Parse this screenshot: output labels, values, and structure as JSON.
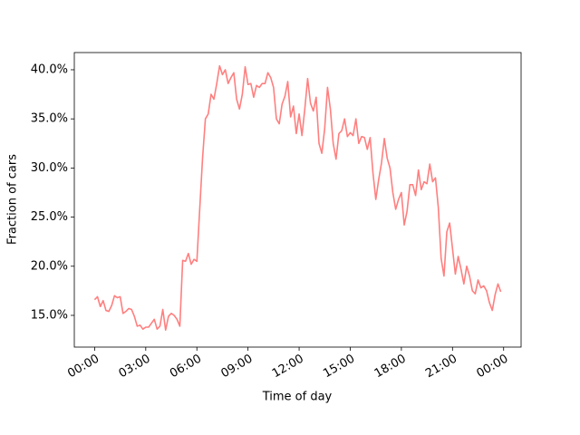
{
  "chart_data": {
    "type": "line",
    "xlabel": "Time of day",
    "ylabel": "Fraction of cars",
    "color": "#ff7f7f",
    "x": [
      0,
      10,
      20,
      30,
      40,
      50,
      60,
      70,
      80,
      90,
      100,
      110,
      120,
      130,
      140,
      150,
      160,
      170,
      180,
      190,
      200,
      210,
      220,
      230,
      240,
      250,
      260,
      270,
      280,
      290,
      300,
      310,
      320,
      330,
      340,
      350,
      360,
      370,
      380,
      390,
      400,
      410,
      420,
      430,
      440,
      450,
      460,
      470,
      480,
      490,
      500,
      510,
      520,
      530,
      540,
      550,
      560,
      570,
      580,
      590,
      600,
      610,
      620,
      630,
      640,
      650,
      660,
      670,
      680,
      690,
      700,
      710,
      720,
      730,
      740,
      750,
      760,
      770,
      780,
      790,
      800,
      810,
      820,
      830,
      840,
      850,
      860,
      870,
      880,
      890,
      900,
      910,
      920,
      930,
      940,
      950,
      960,
      970,
      980,
      990,
      1000,
      1010,
      1020,
      1030,
      1040,
      1050,
      1060,
      1070,
      1080,
      1090,
      1100,
      1110,
      1120,
      1130,
      1140,
      1150,
      1160,
      1170,
      1180,
      1190,
      1200,
      1210,
      1220,
      1230,
      1240,
      1250,
      1260,
      1270,
      1280,
      1290,
      1300,
      1310,
      1320,
      1330,
      1340,
      1350,
      1360,
      1370,
      1380,
      1390,
      1400,
      1410,
      1420,
      1430
    ],
    "values": [
      16.6,
      16.9,
      15.9,
      16.5,
      15.5,
      15.4,
      16.0,
      17.0,
      16.8,
      16.9,
      15.2,
      15.4,
      15.7,
      15.6,
      14.9,
      13.9,
      14.0,
      13.6,
      13.8,
      13.8,
      14.2,
      14.6,
      13.6,
      13.9,
      15.6,
      13.5,
      14.9,
      15.2,
      15.0,
      14.6,
      13.9,
      20.6,
      20.5,
      21.3,
      20.2,
      20.7,
      20.5,
      25.8,
      31.0,
      35.0,
      35.5,
      37.5,
      37.0,
      38.6,
      40.4,
      39.5,
      40.0,
      38.6,
      39.2,
      39.7,
      37.0,
      36.0,
      37.5,
      40.3,
      38.5,
      38.6,
      37.2,
      38.4,
      38.2,
      38.6,
      38.6,
      39.7,
      39.2,
      38.2,
      35.0,
      34.5,
      36.5,
      37.3,
      38.8,
      35.2,
      36.3,
      33.5,
      35.5,
      33.3,
      36.0,
      39.1,
      36.6,
      35.8,
      37.2,
      32.5,
      31.5,
      34.0,
      38.2,
      36.0,
      32.5,
      30.9,
      33.5,
      33.8,
      35.0,
      33.2,
      33.6,
      33.3,
      35.0,
      32.5,
      33.2,
      33.1,
      31.9,
      33.1,
      29.5,
      26.8,
      28.8,
      30.5,
      33.0,
      31.0,
      30.0,
      27.5,
      25.8,
      26.8,
      27.5,
      24.2,
      25.6,
      28.3,
      28.3,
      27.2,
      29.8,
      27.8,
      28.6,
      28.4,
      30.4,
      28.6,
      29.0,
      26.0,
      20.8,
      19.0,
      23.5,
      24.4,
      21.8,
      19.2,
      21.0,
      19.7,
      18.2,
      20.0,
      19.0,
      17.5,
      17.2,
      18.6,
      17.8,
      18.0,
      17.5,
      16.3,
      15.5,
      17.1,
      18.2,
      17.4
    ],
    "xlim": [
      -71.5,
      1501.5
    ],
    "xticks": [
      {
        "value": 0,
        "label": "00:00"
      },
      {
        "value": 180,
        "label": "03:00"
      },
      {
        "value": 360,
        "label": "06:00"
      },
      {
        "value": 540,
        "label": "09:00"
      },
      {
        "value": 720,
        "label": "12:00"
      },
      {
        "value": 900,
        "label": "15:00"
      },
      {
        "value": 1080,
        "label": "18:00"
      },
      {
        "value": 1260,
        "label": "21:00"
      },
      {
        "value": 1440,
        "label": "00:00"
      }
    ],
    "ylim": [
      11.77,
      41.75
    ],
    "yticks": [
      {
        "value": 15,
        "label": "15.0%"
      },
      {
        "value": 20,
        "label": "20.0%"
      },
      {
        "value": 25,
        "label": "25.0%"
      },
      {
        "value": 30,
        "label": "30.0%"
      },
      {
        "value": 35,
        "label": "35.0%"
      },
      {
        "value": 40,
        "label": "40.0%"
      }
    ]
  }
}
